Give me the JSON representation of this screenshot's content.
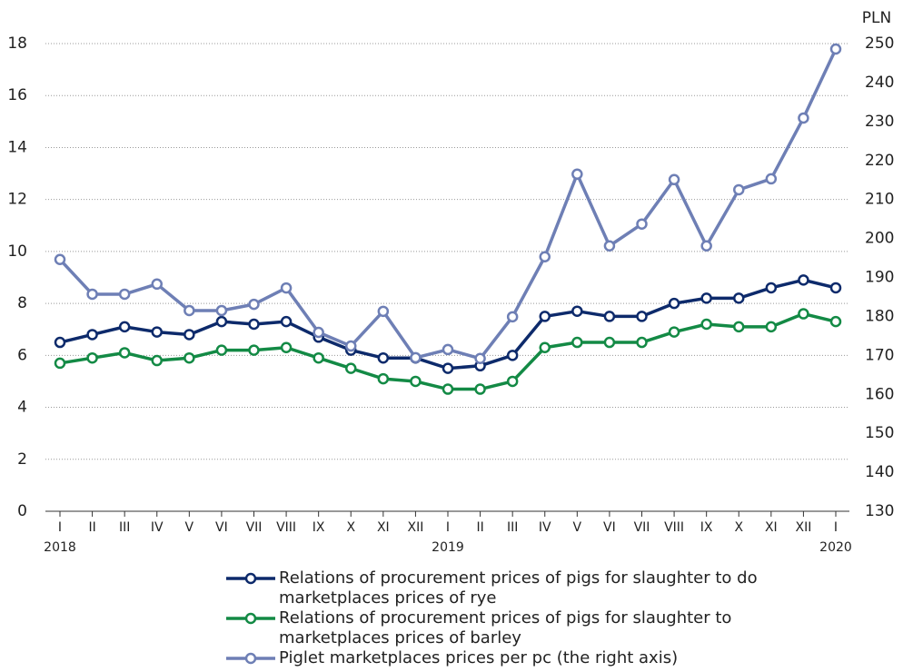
{
  "chart_data": {
    "type": "line",
    "categories": [
      "I",
      "II",
      "III",
      "IV",
      "V",
      "VI",
      "VII",
      "VIII",
      "IX",
      "X",
      "XI",
      "XII",
      "I",
      "II",
      "III",
      "IV",
      "V",
      "VI",
      "VII",
      "VIII",
      "IX",
      "X",
      "XI",
      "XII",
      "I"
    ],
    "category_years": [
      "2018",
      null,
      null,
      null,
      null,
      null,
      null,
      null,
      null,
      null,
      null,
      null,
      "2019",
      null,
      null,
      null,
      null,
      null,
      null,
      null,
      null,
      null,
      null,
      null,
      "2020"
    ],
    "ylim": [
      0,
      18
    ],
    "yticks": [
      0,
      2,
      4,
      6,
      8,
      10,
      12,
      14,
      16,
      18
    ],
    "y2label": "PLN",
    "y2lim": [
      130,
      250
    ],
    "y2ticks": [
      130,
      140,
      150,
      160,
      170,
      180,
      190,
      200,
      210,
      220,
      230,
      240,
      250
    ],
    "grid": true,
    "series": [
      {
        "name": "Relations of procurement prices of pigs for slaughter to do marketplaces prices of rye",
        "color": "#0d2a6b",
        "values": [
          6.5,
          6.8,
          7.1,
          6.9,
          6.8,
          7.3,
          7.2,
          7.3,
          6.7,
          6.2,
          5.9,
          5.9,
          5.5,
          5.6,
          6.0,
          7.5,
          7.7,
          7.5,
          7.5,
          8.0,
          8.2,
          8.2,
          8.6,
          8.9,
          8.6
        ]
      },
      {
        "name": "Relations of procurement prices of pigs for slaughter to marketplaces prices of barley",
        "color": "#138a45",
        "values": [
          5.7,
          5.9,
          6.1,
          5.8,
          5.9,
          6.2,
          6.2,
          6.3,
          5.9,
          5.5,
          5.1,
          5.0,
          4.7,
          4.7,
          5.0,
          6.3,
          6.5,
          6.5,
          6.5,
          6.9,
          7.2,
          7.1,
          7.1,
          7.6,
          7.3
        ]
      },
      {
        "name": "Piglet marketplaces prices per pc (the right axis)",
        "color": "#6e7fb5",
        "axis": "y2",
        "values": [
          194.6,
          185.7,
          185.7,
          188.3,
          181.5,
          181.5,
          183.1,
          187.3,
          175.9,
          172.4,
          181.3,
          169.4,
          171.5,
          169.2,
          179.9,
          195.3,
          216.5,
          198.1,
          203.7,
          215.1,
          198.1,
          212.5,
          215.3,
          230.9,
          248.6
        ]
      }
    ]
  }
}
